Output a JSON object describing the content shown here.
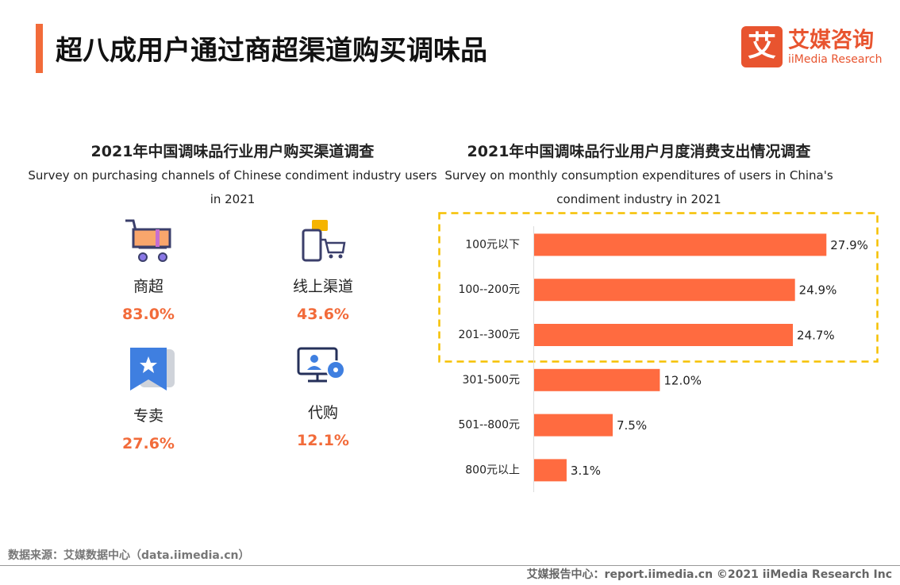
{
  "header": {
    "title": "超八成用户通过商超渠道购买调味品",
    "logo_mark": "艾",
    "logo_cn": "艾媒咨询",
    "logo_en": "iiMedia Research"
  },
  "left_panel": {
    "title": "2021年中国调味品行业用户购买渠道调查",
    "subtitle": "Survey on purchasing channels of Chinese condiment industry users in 2021",
    "items": [
      {
        "label": "商超",
        "value": "83.0%"
      },
      {
        "label": "线上渠道",
        "value": "43.6%"
      },
      {
        "label": "专卖",
        "value": "27.6%"
      },
      {
        "label": "代购",
        "value": "12.1%"
      }
    ]
  },
  "chart_data": {
    "type": "bar",
    "orientation": "horizontal",
    "title": "2021年中国调味品行业用户月度消费支出情况调查",
    "subtitle": "Survey on monthly consumption expenditures of users in China's condiment industry in 2021",
    "categories": [
      "100元以下",
      "100--200元",
      "201--300元",
      "301-500元",
      "501--800元",
      "800元以上"
    ],
    "values": [
      27.9,
      24.9,
      24.7,
      12.0,
      7.5,
      3.1
    ],
    "value_labels": [
      "27.9%",
      "24.9%",
      "24.7%",
      "12.0%",
      "7.5%",
      "3.1%"
    ],
    "color": "#ff6b40",
    "xlim": [
      0,
      30
    ]
  },
  "footer": {
    "source": "数据来源：艾媒数据中心（data.iimedia.cn）",
    "credit": "艾媒报告中心：report.iimedia.cn  ©2021  iiMedia Research  Inc"
  }
}
